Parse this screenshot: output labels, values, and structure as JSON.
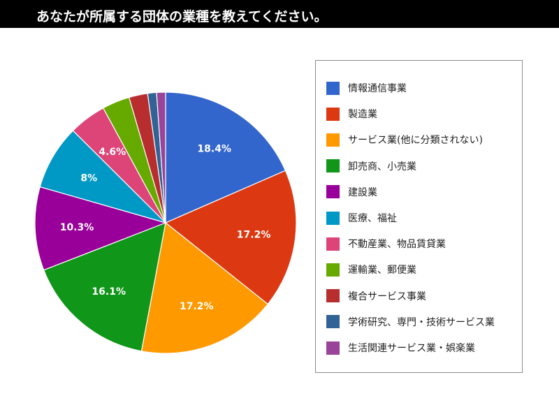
{
  "title": "あなたが所属する団体の業種を教えてください。",
  "chart_data": {
    "type": "pie",
    "title": "あなたが所属する団体の業種を教えてください。",
    "legend_position": "right",
    "labels": [
      "情報通信事業",
      "製造業",
      "サービス業(他に分類されない)",
      "卸売商、小売業",
      "建設業",
      "医療、福祉",
      "不動産業、物品賃貸業",
      "運輸業、郵便業",
      "複合サービス事業",
      "学術研究、専門・技術サービス業",
      "生活関連サービス業・娯楽業"
    ],
    "values": [
      18.4,
      17.2,
      17.2,
      16.1,
      10.3,
      8.0,
      4.6,
      3.4,
      2.3,
      1.1,
      1.1
    ],
    "data_labels": [
      "18.4%",
      "17.2%",
      "17.2%",
      "16.1%",
      "10.3%",
      "8%",
      "4.6%",
      "",
      "",
      "",
      ""
    ],
    "colors": [
      "#3366cc",
      "#dc3912",
      "#ff9900",
      "#109618",
      "#990099",
      "#0099c6",
      "#dd4477",
      "#66aa00",
      "#b82e2e",
      "#316395",
      "#994499"
    ]
  }
}
